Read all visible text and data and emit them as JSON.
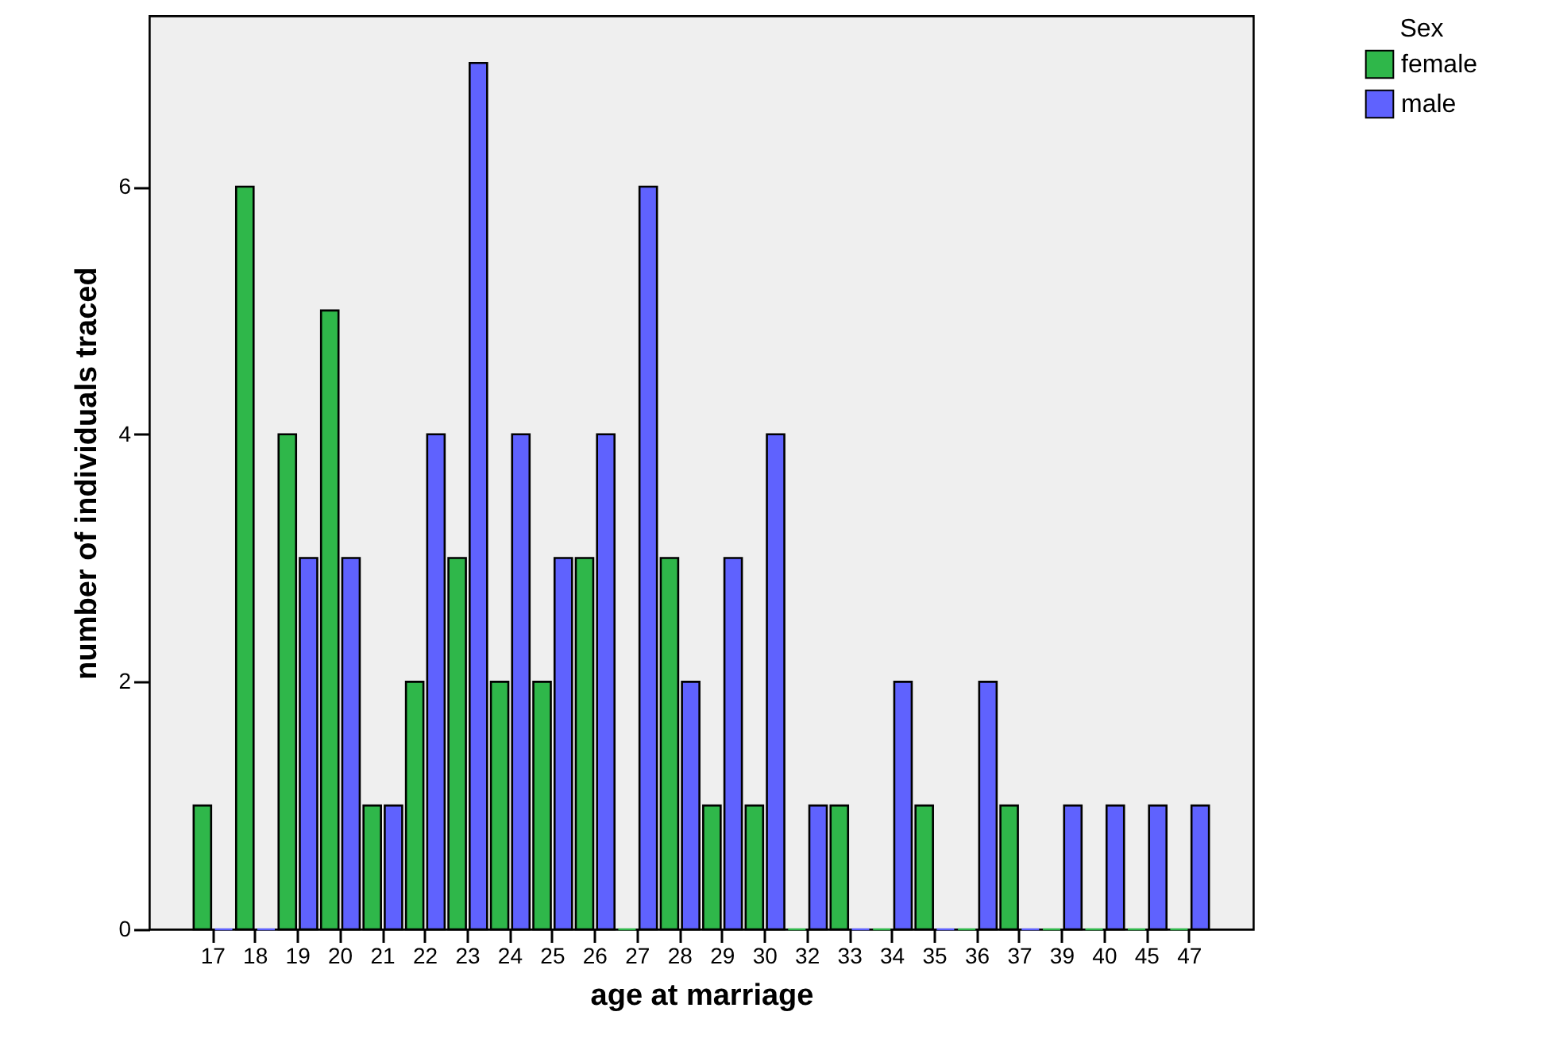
{
  "chart_data": {
    "type": "bar",
    "xlabel": "age at marriage",
    "ylabel": "number of individuals traced",
    "legend_title": "Sex",
    "legend": "top right",
    "categories": [
      "17",
      "18",
      "19",
      "20",
      "21",
      "22",
      "23",
      "24",
      "25",
      "26",
      "27",
      "28",
      "29",
      "30",
      "32",
      "33",
      "34",
      "35",
      "36",
      "37",
      "39",
      "40",
      "45",
      "47"
    ],
    "series": [
      {
        "name": "female",
        "color": "#2fb74a",
        "values": [
          1,
          6,
          4,
          5,
          1,
          2,
          3,
          2,
          2,
          3,
          0,
          3,
          1,
          1,
          0,
          1,
          0,
          1,
          0,
          1,
          0,
          0,
          0,
          0
        ]
      },
      {
        "name": "male",
        "color": "#5f62fe",
        "values": [
          0,
          0,
          3,
          3,
          1,
          4,
          7,
          4,
          3,
          4,
          6,
          2,
          3,
          4,
          1,
          0,
          2,
          0,
          2,
          0,
          1,
          1,
          1,
          1
        ]
      }
    ],
    "ylim": [
      0,
      7.38
    ],
    "yticks": [
      0,
      2,
      4,
      6
    ],
    "grid": false
  }
}
